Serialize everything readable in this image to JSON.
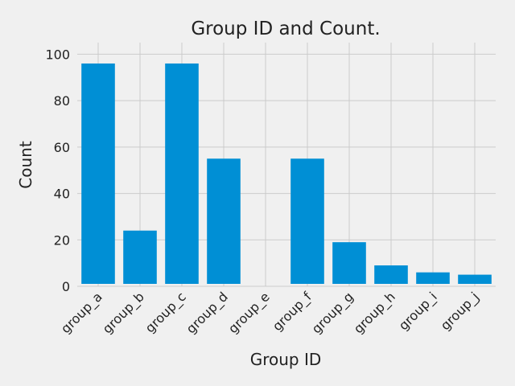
{
  "chart_data": {
    "type": "bar",
    "title": "Group ID and Count.",
    "xlabel": "Group ID",
    "ylabel": "Count",
    "categories": [
      "group_a",
      "group_b",
      "group_c",
      "group_d",
      "group_e",
      "group_f",
      "group_g",
      "group_h",
      "group_i",
      "group_j"
    ],
    "values": [
      96,
      24,
      96,
      55,
      1,
      55,
      19,
      9,
      6,
      5
    ],
    "ylim": [
      0,
      105
    ],
    "yticks": [
      0,
      20,
      40,
      60,
      80,
      100
    ],
    "grid": true,
    "legend": "none",
    "colors": {
      "bar": "#008fd5",
      "background": "#f0f0f0",
      "grid": "#cbcbcb"
    }
  }
}
